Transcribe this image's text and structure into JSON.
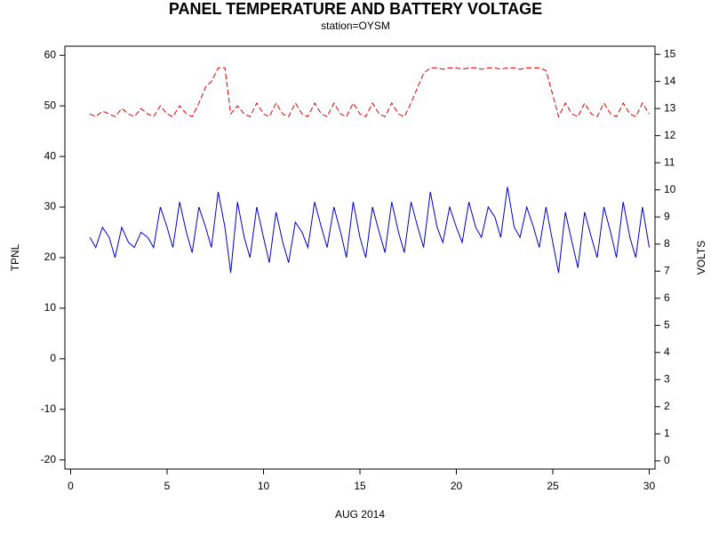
{
  "chart_data": {
    "type": "line",
    "title": "PANEL TEMPERATURE AND BATTERY VOLTAGE",
    "subtitle": "station=OYSM",
    "xlabel": "AUG 2014",
    "ylabel": "TPNL",
    "y2label": "VOLTS",
    "xlim": [
      -0.3,
      30.3
    ],
    "xticks": [
      0,
      5,
      10,
      15,
      20,
      25,
      30
    ],
    "ylim": [
      -21.8,
      61.8
    ],
    "yticks": [
      -20,
      -10,
      0,
      10,
      20,
      30,
      40,
      50,
      60
    ],
    "y2lim": [
      -0.3,
      15.3
    ],
    "y2ticks": [
      0,
      1,
      2,
      3,
      4,
      5,
      6,
      7,
      8,
      9,
      10,
      11,
      12,
      13,
      14,
      15
    ],
    "x": [
      1,
      1.3,
      1.65,
      2,
      2.3,
      2.65,
      3,
      3.3,
      3.65,
      4,
      4.3,
      4.65,
      5,
      5.3,
      5.65,
      6,
      6.3,
      6.65,
      7,
      7.3,
      7.65,
      8,
      8.3,
      8.65,
      9,
      9.3,
      9.65,
      10,
      10.3,
      10.65,
      11,
      11.3,
      11.65,
      12,
      12.3,
      12.65,
      13,
      13.3,
      13.65,
      14,
      14.3,
      14.65,
      15,
      15.3,
      15.65,
      16,
      16.3,
      16.65,
      17,
      17.3,
      17.65,
      18,
      18.3,
      18.65,
      19,
      19.3,
      19.65,
      20,
      20.3,
      20.65,
      21,
      21.3,
      21.65,
      22,
      22.3,
      22.65,
      23,
      23.3,
      23.65,
      24,
      24.3,
      24.65,
      25,
      25.3,
      25.65,
      26,
      26.3,
      26.65,
      27,
      27.3,
      27.65,
      28,
      28.3,
      28.65,
      29,
      29.3,
      29.65,
      30
    ],
    "series": [
      {
        "color": "#0000cc",
        "axis": "y",
        "dashed": false,
        "values": [
          24,
          22,
          26,
          24,
          20,
          26,
          23,
          22,
          25,
          24,
          22,
          30,
          26,
          22,
          31,
          25,
          21,
          30,
          26,
          22,
          33,
          26,
          17,
          31,
          24,
          20,
          30,
          24,
          19,
          29,
          23,
          19,
          27,
          25,
          22,
          31,
          26,
          22,
          30,
          25,
          20,
          31,
          24,
          20,
          30,
          25,
          21,
          31,
          25,
          21,
          31,
          26,
          22,
          33,
          26,
          23,
          30,
          26,
          23,
          31,
          26,
          24,
          30,
          28,
          24,
          34,
          26,
          24,
          30,
          26,
          22,
          30,
          23,
          17,
          29,
          23,
          18,
          29,
          24,
          20,
          30,
          25,
          20,
          31,
          24,
          20,
          30,
          22
        ]
      },
      {
        "color": "#dd0000",
        "axis": "y2",
        "dashed": true,
        "values": [
          12.8,
          12.7,
          12.9,
          12.8,
          12.7,
          13.0,
          12.8,
          12.7,
          13.0,
          12.8,
          12.7,
          13.1,
          12.8,
          12.7,
          13.1,
          12.8,
          12.7,
          13.2,
          13.8,
          14.0,
          14.5,
          14.5,
          12.8,
          13.1,
          12.8,
          12.7,
          13.2,
          12.8,
          12.7,
          13.2,
          12.8,
          12.7,
          13.2,
          12.8,
          12.7,
          13.2,
          12.8,
          12.7,
          13.2,
          12.8,
          12.7,
          13.2,
          12.8,
          12.7,
          13.2,
          12.8,
          12.7,
          13.2,
          12.8,
          12.7,
          13.2,
          13.8,
          14.3,
          14.5,
          14.5,
          14.45,
          14.5,
          14.5,
          14.45,
          14.5,
          14.5,
          14.45,
          14.5,
          14.5,
          14.45,
          14.5,
          14.5,
          14.45,
          14.5,
          14.5,
          14.5,
          14.4,
          13.5,
          12.7,
          13.2,
          12.8,
          12.7,
          13.2,
          12.8,
          12.7,
          13.2,
          12.8,
          12.7,
          13.2,
          12.8,
          12.7,
          13.2,
          12.8
        ]
      }
    ]
  }
}
